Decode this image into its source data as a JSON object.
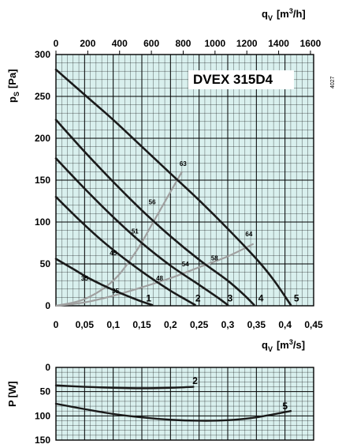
{
  "chart_data": [
    {
      "type": "line",
      "title": "DVEX 315D4",
      "side_code": "4027",
      "ylabel_main": "p",
      "ylabel_sub": "S",
      "ylabel_unit": "[Pa]",
      "xlabel_main": "q",
      "xlabel_sub": "V",
      "xlabel_unit_pre": "[m",
      "xlabel_unit_sup": "3",
      "xlabel_unit_post": "/s]",
      "top_xlabel_main": "q",
      "top_xlabel_sub": "V",
      "top_xlabel_unit_pre": "[m",
      "top_xlabel_unit_sup": "3",
      "top_xlabel_unit_post": "/h]",
      "xlim": [
        0,
        0.45
      ],
      "ylim": [
        0,
        300
      ],
      "top_xlim": [
        0,
        1620
      ],
      "x_ticks": [
        "0",
        "0,05",
        "0,1",
        "0,15",
        "0,2",
        "0,25",
        "0,3",
        "0,35",
        "0,4",
        "0,45"
      ],
      "x_tick_values": [
        0,
        0.05,
        0.1,
        0.15,
        0.2,
        0.25,
        0.3,
        0.35,
        0.4,
        0.45
      ],
      "y_ticks": [
        "0",
        "50",
        "100",
        "150",
        "200",
        "250",
        "300"
      ],
      "y_tick_values": [
        0,
        50,
        100,
        150,
        200,
        250,
        300
      ],
      "top_ticks": [
        "0",
        "200",
        "400",
        "600",
        "800",
        "1000",
        "1200",
        "1400",
        "1600"
      ],
      "top_tick_values": [
        0,
        200,
        400,
        600,
        800,
        1000,
        1200,
        1400,
        1600
      ],
      "grid": true,
      "series": [
        {
          "name": "1",
          "label_at": [
            0.162,
            9
          ],
          "points": [
            [
              0,
              56
            ],
            [
              0.03,
              44
            ],
            [
              0.06,
              32
            ],
            [
              0.09,
              22
            ],
            [
              0.12,
              13
            ],
            [
              0.15,
              5
            ],
            [
              0.168,
              1
            ]
          ]
        },
        {
          "name": "2",
          "label_at": [
            0.248,
            9
          ],
          "points": [
            [
              0,
              130
            ],
            [
              0.04,
              103
            ],
            [
              0.08,
              78
            ],
            [
              0.12,
              56
            ],
            [
              0.16,
              36
            ],
            [
              0.2,
              18
            ],
            [
              0.225,
              8
            ],
            [
              0.243,
              1
            ]
          ]
        },
        {
          "name": "3",
          "label_at": [
            0.304,
            9
          ],
          "points": [
            [
              0,
              176
            ],
            [
              0.05,
              140
            ],
            [
              0.1,
              106
            ],
            [
              0.15,
              75
            ],
            [
              0.2,
              48
            ],
            [
              0.25,
              25
            ],
            [
              0.28,
              11
            ],
            [
              0.3,
              1
            ]
          ]
        },
        {
          "name": "4",
          "label_at": [
            0.358,
            9
          ],
          "points": [
            [
              0,
              222
            ],
            [
              0.05,
              184
            ],
            [
              0.1,
              148
            ],
            [
              0.15,
              114
            ],
            [
              0.2,
              83
            ],
            [
              0.25,
              55
            ],
            [
              0.3,
              30
            ],
            [
              0.33,
              12
            ],
            [
              0.346,
              1
            ]
          ]
        },
        {
          "name": "5",
          "label_at": [
            0.42,
            9
          ],
          "points": [
            [
              0,
              282
            ],
            [
              0.05,
              252
            ],
            [
              0.1,
              222
            ],
            [
              0.15,
              190
            ],
            [
              0.2,
              158
            ],
            [
              0.25,
              126
            ],
            [
              0.3,
              92
            ],
            [
              0.35,
              56
            ],
            [
              0.38,
              31
            ],
            [
              0.41,
              1
            ]
          ]
        }
      ],
      "efficiency_lines": [
        {
          "points": [
            [
              0,
              0
            ],
            [
              0.05,
              8
            ],
            [
              0.1,
              30
            ],
            [
              0.14,
              65
            ],
            [
              0.17,
              100
            ],
            [
              0.2,
              136
            ],
            [
              0.22,
              160
            ]
          ],
          "labels": [
            {
              "text": "35",
              "at": [
                0.05,
                33
              ]
            },
            {
              "text": "45",
              "at": [
                0.1,
                63
              ]
            },
            {
              "text": "51",
              "at": [
                0.138,
                89
              ]
            },
            {
              "text": "56",
              "at": [
                0.168,
                124
              ]
            },
            {
              "text": "63",
              "at": [
                0.222,
                170
              ]
            }
          ]
        },
        {
          "points": [
            [
              0,
              0
            ],
            [
              0.05,
              4
            ],
            [
              0.1,
              12
            ],
            [
              0.15,
              22
            ],
            [
              0.2,
              33
            ],
            [
              0.25,
              46
            ],
            [
              0.3,
              59
            ],
            [
              0.345,
              74
            ]
          ],
          "labels": [
            {
              "text": "35",
              "at": [
                0.104,
                18
              ]
            },
            {
              "text": "48",
              "at": [
                0.181,
                33
              ]
            },
            {
              "text": "54",
              "at": [
                0.226,
                50
              ]
            },
            {
              "text": "58",
              "at": [
                0.277,
                57
              ]
            },
            {
              "text": "64",
              "at": [
                0.337,
                86
              ]
            }
          ]
        }
      ]
    },
    {
      "type": "line",
      "ylabel_main": "P",
      "ylabel_unit": "[W]",
      "ylim": [
        0,
        150
      ],
      "inverted_y": true,
      "xlim": [
        0,
        0.45
      ],
      "y_ticks": [
        "0",
        "50",
        "100",
        "150"
      ],
      "y_tick_values": [
        0,
        50,
        100,
        150
      ],
      "grid": true,
      "series": [
        {
          "name": "2",
          "label_at": [
            0.243,
            28
          ],
          "points": [
            [
              0,
              37
            ],
            [
              0.05,
              40
            ],
            [
              0.1,
              42
            ],
            [
              0.15,
              43
            ],
            [
              0.2,
              42
            ],
            [
              0.24,
              40
            ]
          ]
        },
        {
          "name": "5",
          "label_at": [
            0.4,
            80
          ],
          "points": [
            [
              0,
              75
            ],
            [
              0.05,
              86
            ],
            [
              0.1,
              96
            ],
            [
              0.15,
              103
            ],
            [
              0.2,
              108
            ],
            [
              0.25,
              110
            ],
            [
              0.3,
              109
            ],
            [
              0.35,
              103
            ],
            [
              0.41,
              90
            ]
          ]
        }
      ]
    }
  ],
  "colors": {
    "plot_bg": "#d9f0ee",
    "grid": "#000000",
    "curve": "#1a1a1a",
    "efficiency": "#a0a0a0"
  }
}
